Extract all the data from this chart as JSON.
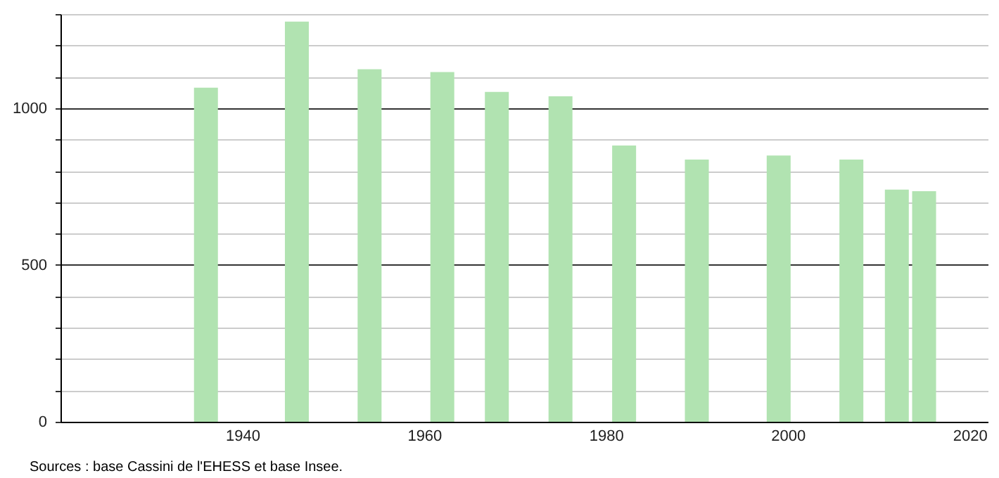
{
  "chart_data": {
    "type": "bar",
    "x": [
      1936,
      1946,
      1954,
      1962,
      1968,
      1975,
      1982,
      1990,
      1999,
      2007,
      2012,
      2015
    ],
    "values": [
      1065,
      1276,
      1124,
      1115,
      1052,
      1038,
      881,
      836,
      849,
      836,
      740,
      735
    ],
    "color": "#b1e3b1",
    "xlim": [
      1920,
      2022
    ],
    "xticks": [
      1940,
      1960,
      1980,
      2000,
      2020
    ],
    "ylim": [
      0,
      1300
    ],
    "yticks": [
      0,
      {
        "value": 100,
        "label": null
      },
      {
        "value": 200,
        "label": null
      },
      {
        "value": 300,
        "label": null
      },
      {
        "value": 400,
        "label": null
      },
      500,
      {
        "value": 600,
        "label": null
      },
      {
        "value": 700,
        "label": null
      },
      {
        "value": 800,
        "label": null
      },
      {
        "value": 900,
        "label": null
      },
      1000,
      {
        "value": 1100,
        "label": null
      },
      {
        "value": 1200,
        "label": null
      },
      {
        "value": 1300,
        "label": null
      }
    ],
    "grid": "y",
    "annotations": [
      "Sources : base Cassini de l'EHESS et base Insee."
    ]
  }
}
